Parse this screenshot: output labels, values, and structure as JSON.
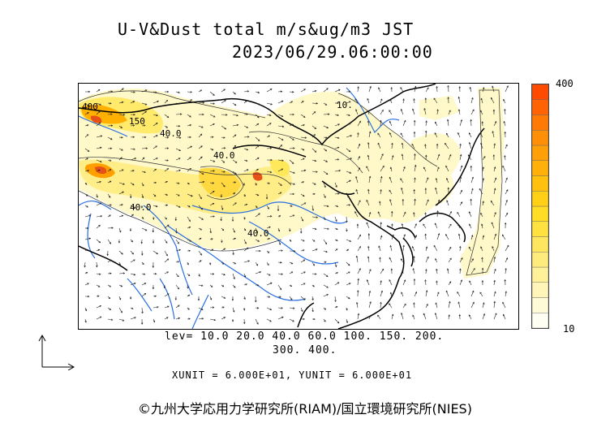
{
  "title": {
    "line1": "U-V&Dust total m/s&ug/m3 JST",
    "line2": "2023/06/29.06:00:00"
  },
  "colorbar": {
    "max_label": "400",
    "min_label": "10",
    "colors": [
      "#fffef2",
      "#fffad6",
      "#fff5b8",
      "#fff09a",
      "#ffeb7d",
      "#ffe65f",
      "#ffe140",
      "#ffdc25",
      "#ffd015",
      "#ffc10d",
      "#ffb10a",
      "#ffa008",
      "#ff8f06",
      "#ff7a04",
      "#ff6303",
      "#ff4a02"
    ]
  },
  "contour_labels": [
    "400",
    "150",
    "40.0",
    "40.0",
    "40.0",
    "40.0",
    "10."
  ],
  "levels": {
    "line1": "lev= 10.0 20.0 40.0 60.0 100. 150. 200.",
    "line2": "300. 400."
  },
  "units": "XUNIT = 6.000E+01, YUNIT = 6.000E+01",
  "copyright": "©九州大学応用力学研究所(RIAM)/国立環境研究所(NIES)",
  "colors": {
    "dust_light": "#fff8c8",
    "dust_mid": "#ffe85a",
    "dust_high": "#ffb000",
    "dust_peak": "#e8501a",
    "river": "#2a6fe0",
    "coast": "#000000"
  }
}
